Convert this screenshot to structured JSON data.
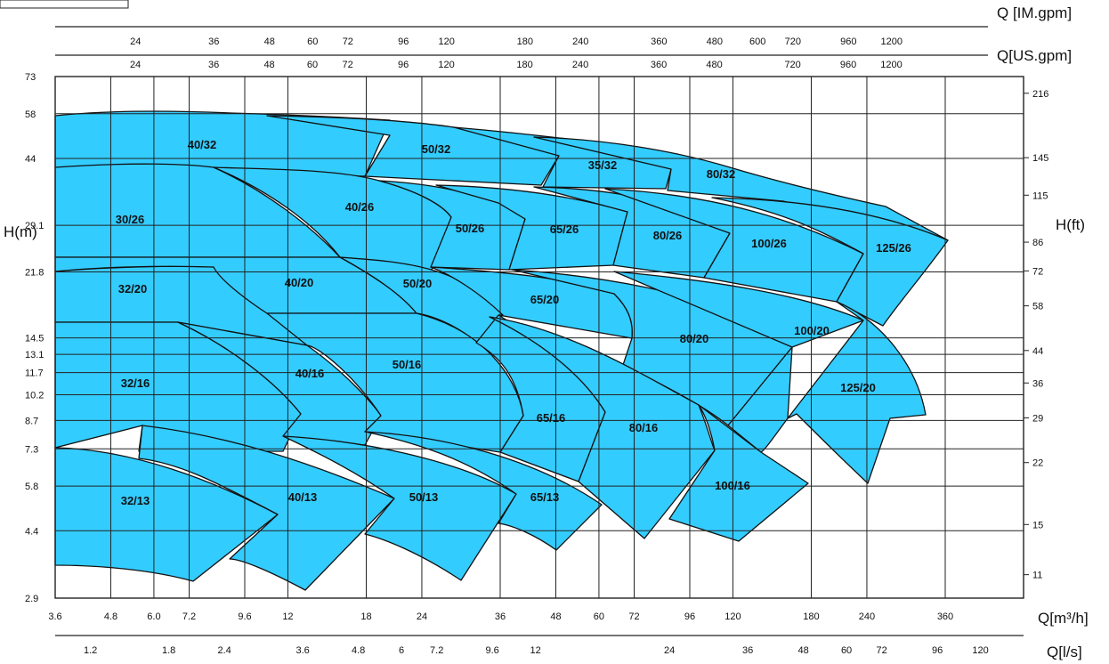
{
  "chart_data": {
    "type": "area",
    "title": "",
    "xlabel": "Q[m³/h]",
    "ylabel": "H(m)",
    "x_scale": "log",
    "y_scale": "log",
    "xlim": [
      3.6,
      360
    ],
    "ylim": [
      2.9,
      73
    ],
    "x_ticks_m3h": [
      "3.6",
      "4.8",
      "6.0",
      "7.2",
      "9.6",
      "12",
      "18",
      "24",
      "36",
      "48",
      "60",
      "72",
      "96",
      "120",
      "180",
      "240",
      "360"
    ],
    "x_ticks_ls": [
      "1.2",
      "1.8",
      "2.4",
      "3.6",
      "4.8",
      "6",
      "7.2",
      "9.6",
      "12",
      "24",
      "36",
      "48",
      "60",
      "72",
      "96",
      "120"
    ],
    "x_ticks_usgpm": [
      "24",
      "36",
      "48",
      "60",
      "72",
      "96",
      "120",
      "180",
      "240",
      "360",
      "480",
      "720",
      "960",
      "1200"
    ],
    "x_ticks_imgpm": [
      "24",
      "36",
      "48",
      "60",
      "72",
      "96",
      "120",
      "180",
      "240",
      "360",
      "480",
      "600",
      "720",
      "960",
      "1200"
    ],
    "y_ticks_m": [
      "73",
      "58",
      "44",
      "29.1",
      "21.8",
      "14.5",
      "13.1",
      "11.7",
      "10.2",
      "8.7",
      "7.3",
      "5.8",
      "4.4",
      "2.9"
    ],
    "y_ticks_ft": [
      "216",
      "145",
      "115",
      "86",
      "72",
      "58",
      "44",
      "36",
      "29",
      "22",
      "15",
      "11"
    ],
    "secondary_axes": {
      "right_label": "H(ft)",
      "bottom2_label": "Q[l/s]",
      "top1_label": "Q [IM.gpm]",
      "top2_label": "Q[US.gpm]"
    },
    "series": [
      {
        "name": "40/32",
        "q_range_m3h": [
          3.6,
          24
        ],
        "h_range_m": [
          44,
          59
        ]
      },
      {
        "name": "50/32",
        "q_range_m3h": [
          18,
          60
        ],
        "h_range_m": [
          38,
          56
        ]
      },
      {
        "name": "35/32",
        "q_range_m3h": [
          60,
          120
        ],
        "h_range_m": [
          38,
          53
        ]
      },
      {
        "name": "80/32",
        "q_range_m3h": [
          96,
          240
        ],
        "h_range_m": [
          32,
          51
        ]
      },
      {
        "name": "30/26",
        "q_range_m3h": [
          3.6,
          18
        ],
        "h_range_m": [
          22,
          45
        ]
      },
      {
        "name": "40/26",
        "q_range_m3h": [
          12,
          36
        ],
        "h_range_m": [
          21,
          44
        ]
      },
      {
        "name": "50/26",
        "q_range_m3h": [
          24,
          48
        ],
        "h_range_m": [
          21,
          38
        ]
      },
      {
        "name": "65/26",
        "q_range_m3h": [
          36,
          72
        ],
        "h_range_m": [
          22,
          37
        ]
      },
      {
        "name": "80/26",
        "q_range_m3h": [
          60,
          120
        ],
        "h_range_m": [
          22,
          37
        ]
      },
      {
        "name": "100/26",
        "q_range_m3h": [
          96,
          180
        ],
        "h_range_m": [
          19,
          36
        ]
      },
      {
        "name": "125/26",
        "q_range_m3h": [
          180,
          360
        ],
        "h_range_m": [
          15,
          33
        ]
      },
      {
        "name": "32/20",
        "q_range_m3h": [
          3.6,
          12
        ],
        "h_range_m": [
          14.5,
          21
        ]
      },
      {
        "name": "40/20",
        "q_range_m3h": [
          9.6,
          30
        ],
        "h_range_m": [
          15,
          22
        ]
      },
      {
        "name": "50/20",
        "q_range_m3h": [
          24,
          48
        ],
        "h_range_m": [
          15,
          22
        ]
      },
      {
        "name": "65/20",
        "q_range_m3h": [
          36,
          72
        ],
        "h_range_m": [
          14,
          21
        ]
      },
      {
        "name": "80/20",
        "q_range_m3h": [
          60,
          120
        ],
        "h_range_m": [
          11,
          20
        ]
      },
      {
        "name": "100/20",
        "q_range_m3h": [
          120,
          180
        ],
        "h_range_m": [
          10,
          20
        ]
      },
      {
        "name": "125/20",
        "q_range_m3h": [
          180,
          360
        ],
        "h_range_m": [
          7,
          16
        ]
      },
      {
        "name": "32/16",
        "q_range_m3h": [
          3.6,
          12
        ],
        "h_range_m": [
          8.7,
          14.5
        ]
      },
      {
        "name": "40/16",
        "q_range_m3h": [
          9.6,
          24
        ],
        "h_range_m": [
          9,
          15
        ]
      },
      {
        "name": "50/16",
        "q_range_m3h": [
          18,
          48
        ],
        "h_range_m": [
          9,
          15
        ]
      },
      {
        "name": "65/16",
        "q_range_m3h": [
          36,
          60
        ],
        "h_range_m": [
          8,
          13
        ]
      },
      {
        "name": "80/16",
        "q_range_m3h": [
          60,
          96
        ],
        "h_range_m": [
          6,
          12
        ]
      },
      {
        "name": "100/16",
        "q_range_m3h": [
          96,
          180
        ],
        "h_range_m": [
          5.5,
          10
        ]
      },
      {
        "name": "32/13",
        "q_range_m3h": [
          3.6,
          9.6
        ],
        "h_range_m": [
          3.8,
          8.7
        ]
      },
      {
        "name": "40/13",
        "q_range_m3h": [
          6.0,
          18
        ],
        "h_range_m": [
          3.3,
          9
        ]
      },
      {
        "name": "50/13",
        "q_range_m3h": [
          12,
          36
        ],
        "h_range_m": [
          3.7,
          9
        ]
      },
      {
        "name": "65/13",
        "q_range_m3h": [
          24,
          60
        ],
        "h_range_m": [
          4.7,
          8.5
        ]
      }
    ]
  }
}
